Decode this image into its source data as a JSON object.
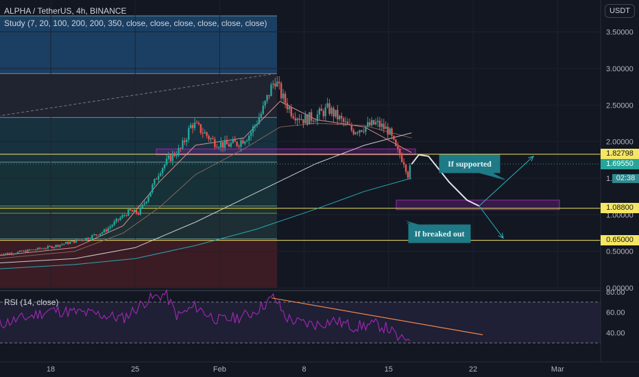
{
  "header": {
    "symbol_line": "ALPHA / TetherUS, 4h, BINANCE",
    "study_line": "Study (7, 20, 100, 200, 200, 350, close, close, close, close, close, close)",
    "unit": "USDT",
    "rsi_label": "RSI (14, close)",
    "countdown": "02:38"
  },
  "price_tags": [
    {
      "label": "1.82798",
      "value": 1.82798,
      "color": "#f5e663"
    },
    {
      "label": "1.69550",
      "value": 1.6955,
      "color": "#26a69a"
    },
    {
      "label": "1.08800",
      "value": 1.088,
      "color": "#f5e663"
    },
    {
      "label": "0.65000",
      "value": 0.65,
      "color": "#f5e663"
    }
  ],
  "annotations": {
    "supported": "If supported",
    "breakout": "If breaked out"
  },
  "colors": {
    "background": "#131722",
    "up": "#26a69a",
    "down": "#ef5350",
    "level_line": "#f5e663",
    "zone": "#9c27b0",
    "projection": "#2ab7c4",
    "rsi_line": "#9c27b0",
    "trend": "#f0874c"
  },
  "chart_data": [
    {
      "type": "candlestick",
      "title": "ALPHA / TetherUS, 4h, BINANCE",
      "ylabel": "USDT",
      "ylim": [
        0,
        3.75
      ],
      "yticks": [
        0.0,
        0.5,
        1.0,
        1.5,
        2.0,
        2.5,
        3.0,
        3.5
      ],
      "ytick_labels": [
        "0.00000",
        "0.50000",
        "1.00000",
        "1.50000",
        "2.00000",
        "2.50000",
        "3.00000",
        "3.50000"
      ],
      "xlim_days": [
        13.5,
        37
      ],
      "xticks": [
        18,
        25,
        32,
        39,
        46,
        53,
        60
      ],
      "xtick_labels": [
        "18",
        "25",
        "Feb",
        "8",
        "15",
        "22",
        "Mar"
      ],
      "price_anchors": [
        [
          13.6,
          0.46
        ],
        [
          15.0,
          0.48
        ],
        [
          16.5,
          0.52
        ],
        [
          18.0,
          0.56
        ],
        [
          19.5,
          0.62
        ],
        [
          21.0,
          0.68
        ],
        [
          22.5,
          0.78
        ],
        [
          23.5,
          0.92
        ],
        [
          24.5,
          1.05
        ],
        [
          25.3,
          1.02
        ],
        [
          26.2,
          1.3
        ],
        [
          27.0,
          1.6
        ],
        [
          28.0,
          1.8
        ],
        [
          28.8,
          1.9
        ],
        [
          29.7,
          2.25
        ],
        [
          30.5,
          2.15
        ],
        [
          31.5,
          2.0
        ],
        [
          32.5,
          1.95
        ],
        [
          33.5,
          1.98
        ],
        [
          34.5,
          2.1
        ],
        [
          35.5,
          2.4
        ],
        [
          36.3,
          2.75
        ],
        [
          36.6,
          2.85
        ],
        [
          37.2,
          2.6
        ],
        [
          38.0,
          2.4
        ],
        [
          39.0,
          2.3
        ],
        [
          40.0,
          2.35
        ],
        [
          41.0,
          2.45
        ],
        [
          42.0,
          2.3
        ],
        [
          43.0,
          2.15
        ],
        [
          44.0,
          2.2
        ],
        [
          45.0,
          2.25
        ],
        [
          46.0,
          2.15
        ],
        [
          46.6,
          1.9
        ],
        [
          47.3,
          1.72
        ],
        [
          47.6,
          1.55
        ],
        [
          47.9,
          1.69
        ]
      ],
      "moving_averages": [
        {
          "color": "#ef9a9a",
          "points": [
            [
              13.6,
              0.44
            ],
            [
              20,
              0.55
            ],
            [
              24,
              0.85
            ],
            [
              27,
              1.45
            ],
            [
              30,
              1.95
            ],
            [
              34,
              2.05
            ],
            [
              37,
              2.55
            ],
            [
              40,
              2.3
            ],
            [
              44,
              2.2
            ],
            [
              47.9,
              1.85
            ]
          ]
        },
        {
          "color": "#8d6e63",
          "points": [
            [
              13.6,
              0.4
            ],
            [
              20,
              0.5
            ],
            [
              24,
              0.75
            ],
            [
              27,
              1.1
            ],
            [
              30,
              1.55
            ],
            [
              34,
              1.9
            ],
            [
              37,
              2.2
            ],
            [
              40,
              2.25
            ],
            [
              44,
              2.22
            ],
            [
              47.9,
              2.05
            ]
          ]
        },
        {
          "color": "#e0e0e0",
          "points": [
            [
              13.6,
              0.34
            ],
            [
              20,
              0.4
            ],
            [
              25,
              0.55
            ],
            [
              30,
              0.9
            ],
            [
              35,
              1.3
            ],
            [
              40,
              1.7
            ],
            [
              44,
              1.95
            ],
            [
              47.9,
              2.12
            ]
          ]
        },
        {
          "color": "#2ab7c4",
          "points": [
            [
              13.6,
              0.26
            ],
            [
              20,
              0.32
            ],
            [
              25,
              0.4
            ],
            [
              30,
              0.58
            ],
            [
              35,
              0.8
            ],
            [
              40,
              1.08
            ],
            [
              44,
              1.32
            ],
            [
              47.9,
              1.5
            ]
          ]
        }
      ],
      "dashed_trend": {
        "points": [
          [
            13.6,
            2.35
          ],
          [
            36.6,
            2.93
          ]
        ]
      },
      "resistance_zone": [
        1.82,
        1.9
      ],
      "support_zone": [
        1.07,
        1.2
      ],
      "projection": {
        "main": [
          [
            47.9,
            1.69
          ],
          [
            48.5,
            1.82
          ],
          [
            49.3,
            1.8
          ],
          [
            51.0,
            1.45
          ],
          [
            52.5,
            1.2
          ],
          [
            53.5,
            1.12
          ]
        ],
        "up": [
          [
            53.5,
            1.12
          ],
          [
            58.0,
            1.8
          ]
        ],
        "down": [
          [
            53.5,
            1.12
          ],
          [
            55.5,
            0.68
          ]
        ]
      },
      "fib_levels": [
        3.72,
        2.93,
        2.33,
        1.72,
        1.12,
        1.02,
        0.67,
        0.0
      ]
    },
    {
      "type": "line",
      "title": "RSI (14, close)",
      "ylim": [
        25,
        90
      ],
      "yticks": [
        40,
        60,
        80
      ],
      "ytick_labels": [
        "40.00",
        "60.00",
        "80.00"
      ],
      "bands": [
        30,
        70
      ],
      "rsi_anchors": [
        [
          13.6,
          48
        ],
        [
          16.0,
          55
        ],
        [
          18.0,
          62
        ],
        [
          20.0,
          60
        ],
        [
          22.0,
          58
        ],
        [
          24.0,
          54
        ],
        [
          26.0,
          72
        ],
        [
          27.5,
          78
        ],
        [
          28.5,
          56
        ],
        [
          30.0,
          66
        ],
        [
          31.0,
          58
        ],
        [
          32.0,
          52
        ],
        [
          33.0,
          54
        ],
        [
          34.5,
          58
        ],
        [
          35.5,
          66
        ],
        [
          36.5,
          75
        ],
        [
          37.5,
          55
        ],
        [
          38.5,
          50
        ],
        [
          40.0,
          48
        ],
        [
          41.5,
          52
        ],
        [
          43.0,
          46
        ],
        [
          45.0,
          48
        ],
        [
          46.0,
          44
        ],
        [
          47.0,
          32
        ],
        [
          47.9,
          38
        ]
      ],
      "trend_line": [
        [
          36.3,
          74
        ],
        [
          53.8,
          38
        ]
      ]
    }
  ]
}
